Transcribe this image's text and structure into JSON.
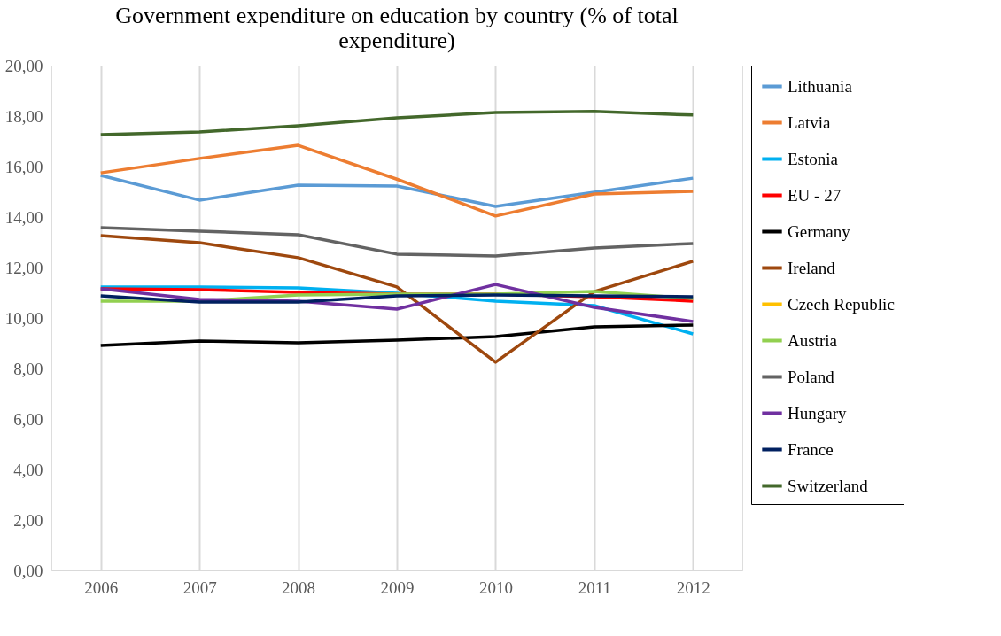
{
  "chart_data": {
    "type": "line",
    "title": "Government expenditure on education by country (% of total expenditure)",
    "categories": [
      "2006",
      "2007",
      "2008",
      "2009",
      "2010",
      "2011",
      "2012"
    ],
    "series": [
      {
        "name": "Lithuania",
        "color": "#5b9bd5",
        "values": [
          15.65,
          14.67,
          15.26,
          15.23,
          14.42,
          14.98,
          15.54
        ]
      },
      {
        "name": "Latvia",
        "color": "#ed7d31",
        "values": [
          15.75,
          16.32,
          16.84,
          15.5,
          14.04,
          14.91,
          15.02
        ]
      },
      {
        "name": "Estonia",
        "color": "#00b0f0",
        "values": [
          11.23,
          11.23,
          11.19,
          10.98,
          10.67,
          10.49,
          9.37
        ]
      },
      {
        "name": "EU - 27",
        "color": "#ff0000",
        "values": [
          11.16,
          11.12,
          11.02,
          10.95,
          10.95,
          10.84,
          10.67
        ]
      },
      {
        "name": "Germany",
        "color": "#000000",
        "values": [
          8.91,
          9.09,
          9.02,
          9.12,
          9.26,
          9.65,
          9.72
        ]
      },
      {
        "name": "Ireland",
        "color": "#9e480e",
        "values": [
          13.26,
          12.98,
          12.39,
          11.23,
          8.25,
          11.05,
          12.25
        ]
      },
      {
        "name": "Czech Republic",
        "color": "#ffc000",
        "values": [
          null,
          null,
          null,
          null,
          null,
          null,
          null
        ]
      },
      {
        "name": "Austria",
        "color": "#92d050",
        "values": [
          10.67,
          10.67,
          10.91,
          10.95,
          10.95,
          11.05,
          10.77
        ]
      },
      {
        "name": "Poland",
        "color": "#636363",
        "values": [
          13.58,
          13.44,
          13.3,
          12.53,
          12.46,
          12.77,
          12.95
        ]
      },
      {
        "name": "Hungary",
        "color": "#7030a0",
        "values": [
          11.16,
          10.74,
          10.67,
          10.35,
          11.33,
          10.42,
          9.86
        ]
      },
      {
        "name": "France",
        "color": "#002060",
        "values": [
          10.88,
          10.63,
          10.63,
          10.88,
          10.91,
          10.88,
          10.84
        ]
      },
      {
        "name": "Switzerland",
        "color": "#43682b",
        "values": [
          17.26,
          17.37,
          17.61,
          17.93,
          18.14,
          18.18,
          18.04
        ]
      }
    ],
    "ylim": [
      0,
      20
    ],
    "yticks": [
      {
        "value": 0,
        "label": "0,00"
      },
      {
        "value": 2,
        "label": "2,00"
      },
      {
        "value": 4,
        "label": "4,00"
      },
      {
        "value": 6,
        "label": "6,00"
      },
      {
        "value": 8,
        "label": "8,00"
      },
      {
        "value": 10,
        "label": "10,00"
      },
      {
        "value": 12,
        "label": "12,00"
      },
      {
        "value": 14,
        "label": "14,00"
      },
      {
        "value": 16,
        "label": "16,00"
      },
      {
        "value": 18,
        "label": "18,00"
      },
      {
        "value": 20,
        "label": "20,00"
      }
    ],
    "grid": "x",
    "legend": "right",
    "marker": "none",
    "line_style": "solid"
  }
}
